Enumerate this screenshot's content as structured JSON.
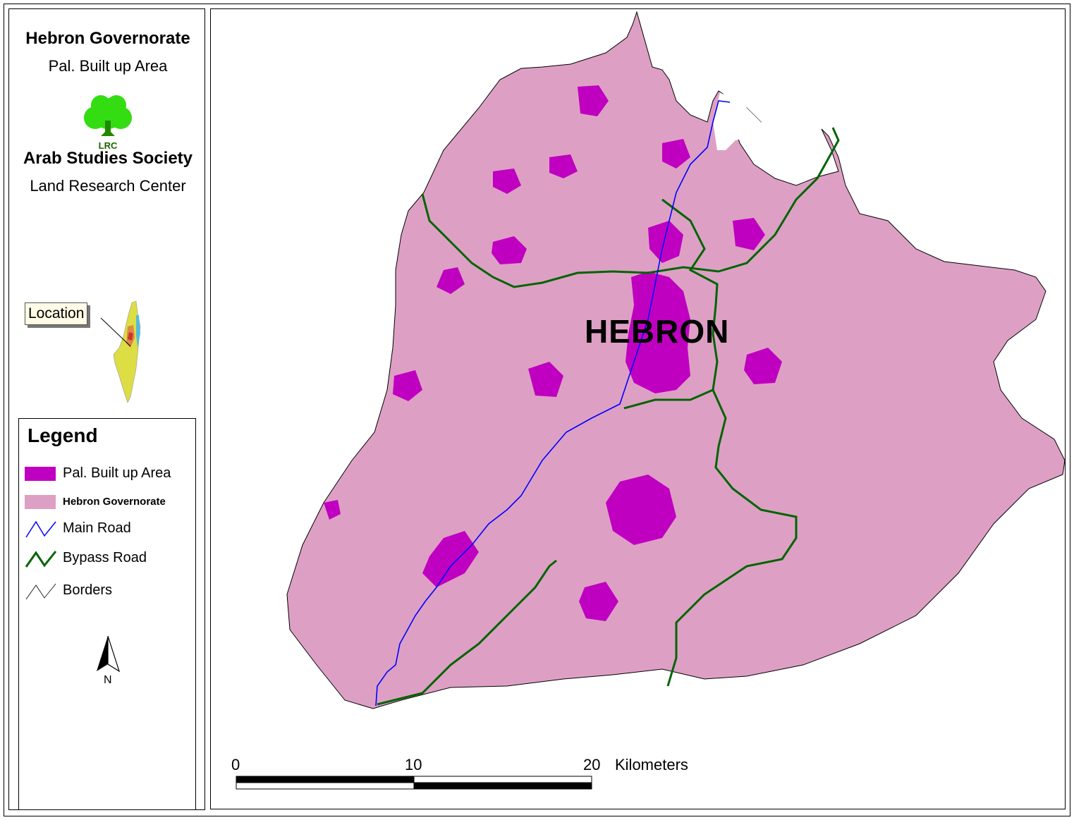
{
  "header": {
    "title": "Hebron Governorate",
    "subtitle": "Pal. Built up Area",
    "logo_text": "LRC",
    "organization": "Arab Studies Society",
    "department": "Land Research Center"
  },
  "inset": {
    "callout_label": "Location"
  },
  "legend": {
    "title": "Legend",
    "items": [
      {
        "label": "Pal. Built up Area",
        "color": "#c000c0",
        "icon": "filled-rect"
      },
      {
        "label": "Hebron Governorate",
        "color": "#dda0c4",
        "icon": "filled-rect"
      },
      {
        "label": "Main Road",
        "color": "#0000ff",
        "icon": "zigzag-line"
      },
      {
        "label": "Bypass Road",
        "color": "#006400",
        "icon": "zigzag-line"
      },
      {
        "label": "Borders",
        "color": "#000000",
        "icon": "zigzag-line"
      }
    ]
  },
  "north_arrow": {
    "label": "N",
    "icon": "north-arrow-icon"
  },
  "map": {
    "city_label": "HEBRON"
  },
  "scale_bar": {
    "ticks": [
      "0",
      "10",
      "20"
    ],
    "unit": "Kilometers"
  },
  "colors": {
    "built_up": "#c000c0",
    "governorate": "#dda0c4",
    "main_road": "#0000ff",
    "bypass_road": "#006400"
  }
}
